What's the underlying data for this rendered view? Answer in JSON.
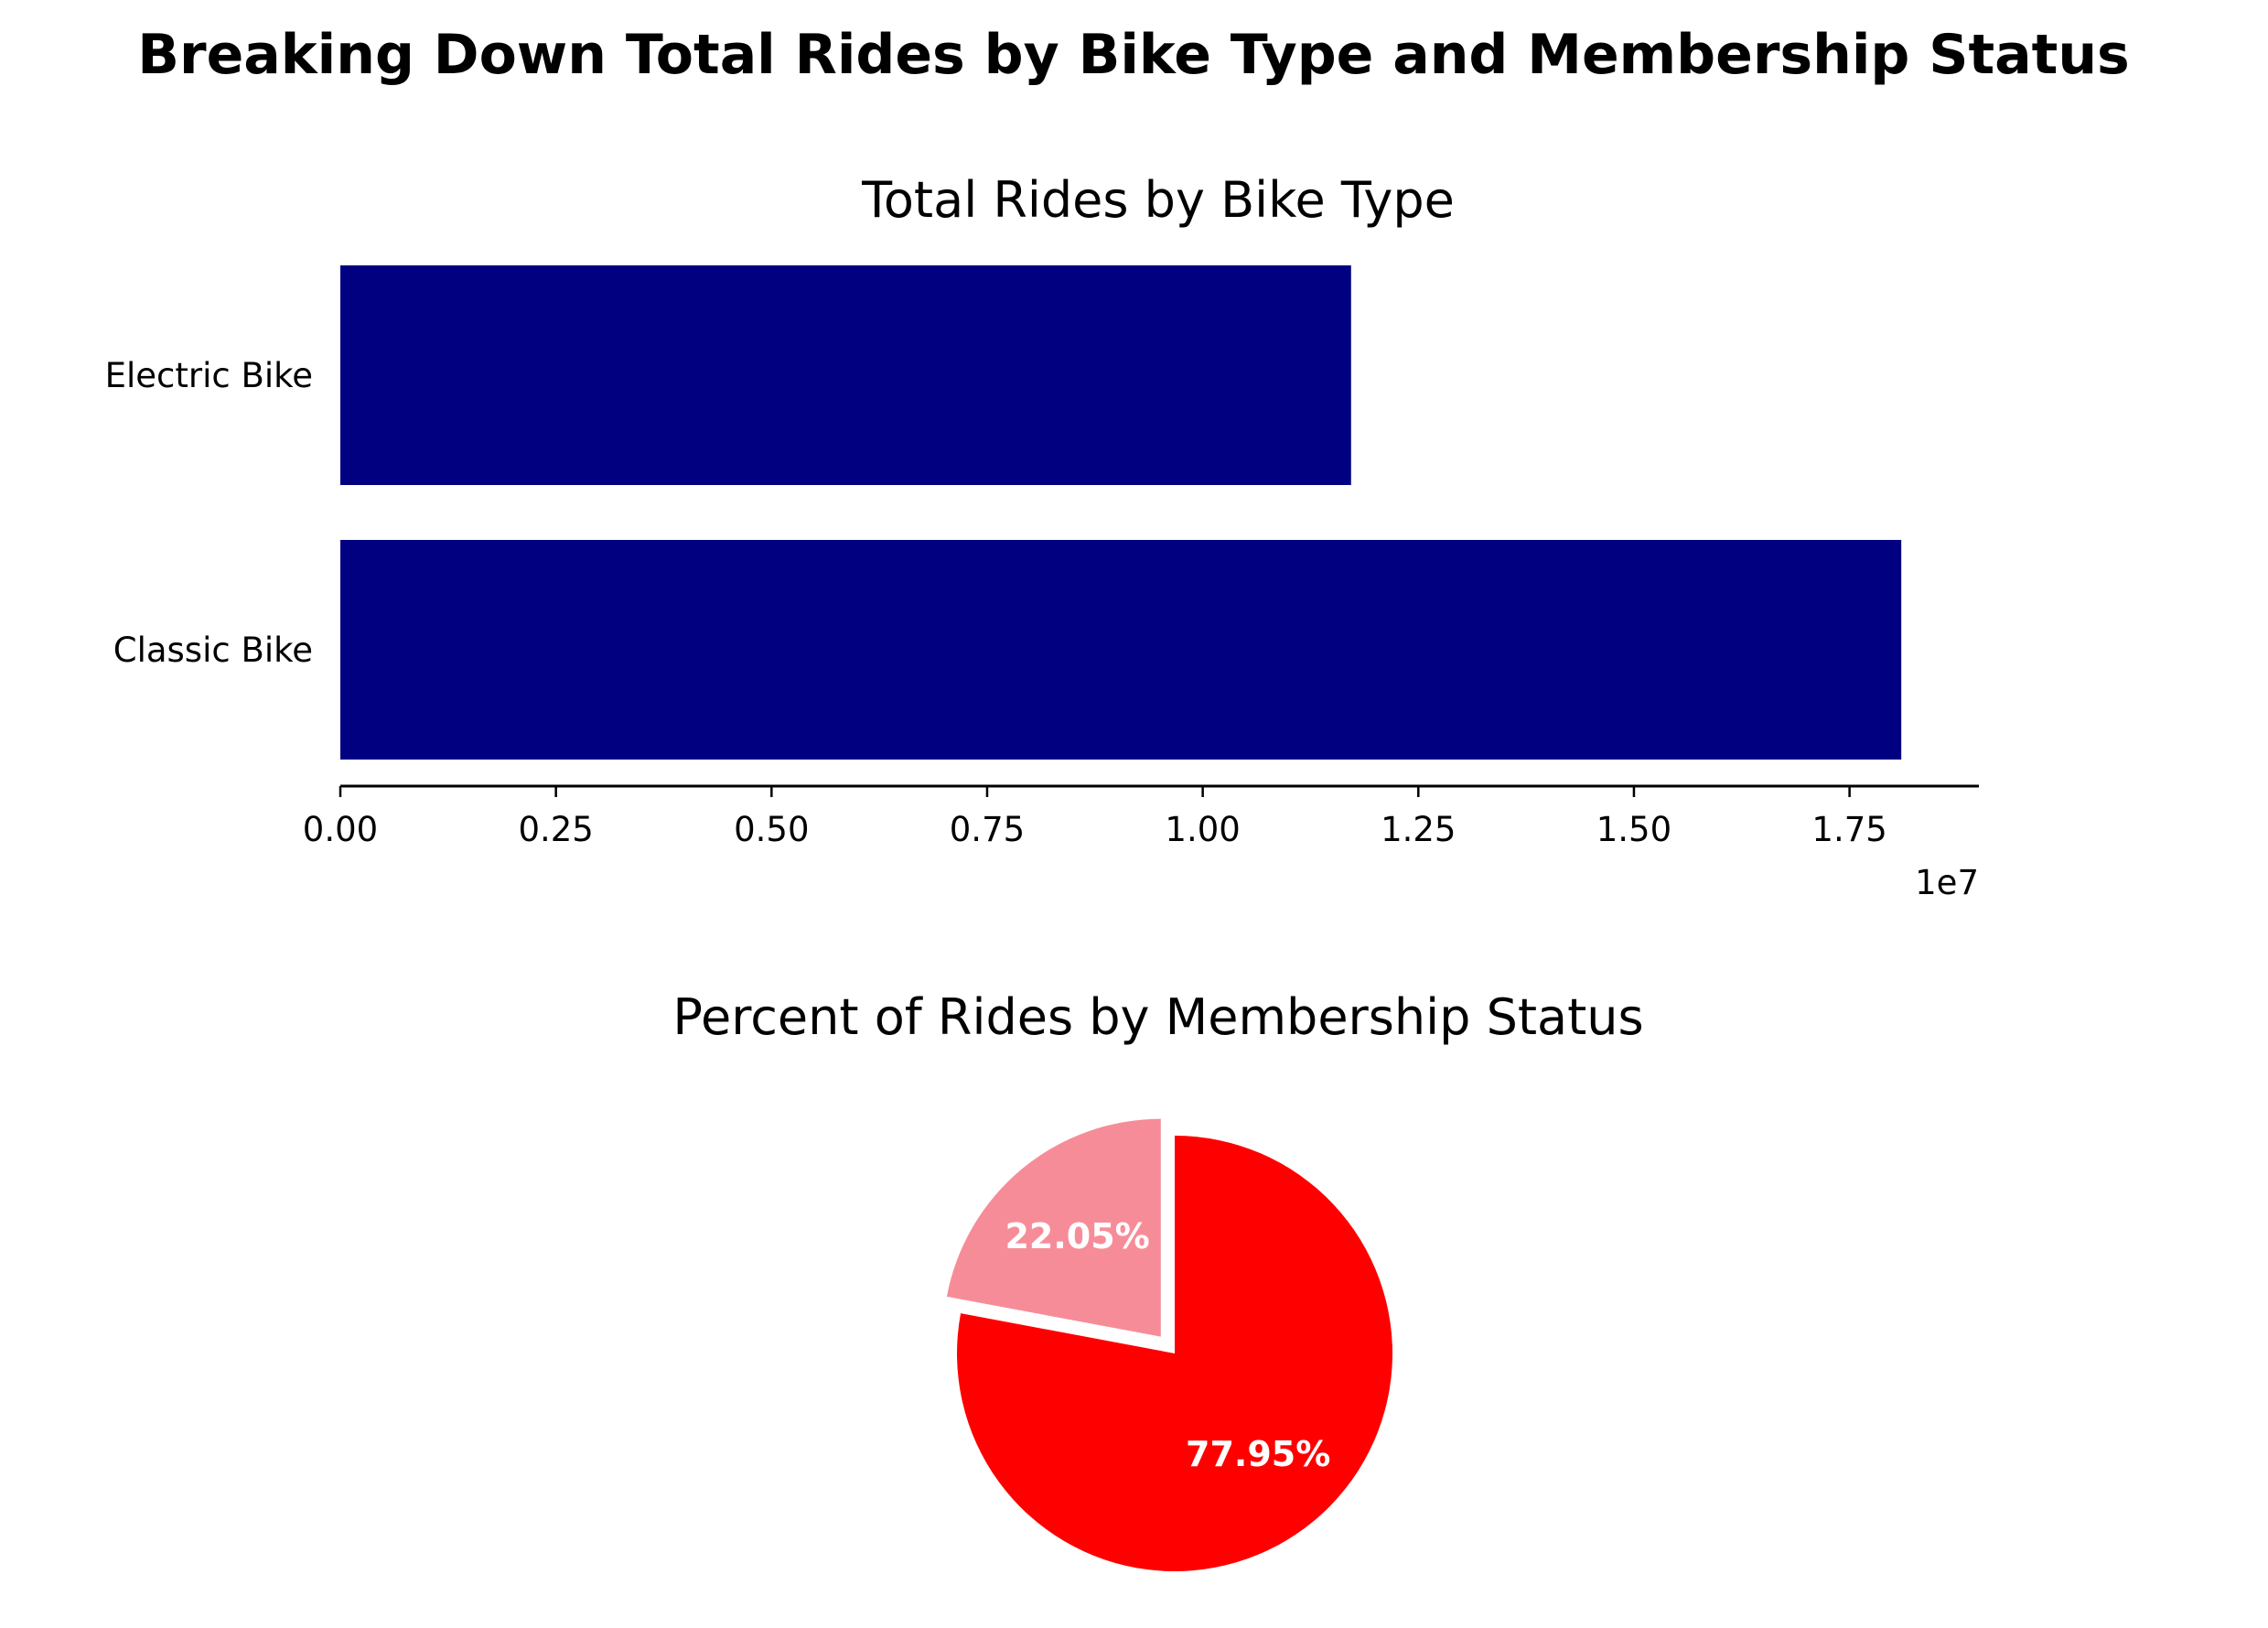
{
  "figure": {
    "title": "Breaking Down Total Rides by Bike Type and Membership Status"
  },
  "chart_data": [
    {
      "type": "bar",
      "orientation": "horizontal",
      "title": "Total Rides by Bike Type",
      "categories": [
        "Electric Bike",
        "Classic Bike"
      ],
      "values": [
        11720000,
        18100000
      ],
      "xlim": [
        0,
        19000000
      ],
      "xticks": [
        0,
        2500000,
        5000000,
        7500000,
        10000000,
        12500000,
        15000000,
        17500000
      ],
      "xtick_labels": [
        "0.00",
        "0.25",
        "0.50",
        "0.75",
        "1.00",
        "1.25",
        "1.50",
        "1.75"
      ],
      "offset_label": "1e7",
      "xlabel": "",
      "ylabel": "",
      "grid": false,
      "color": "#000080"
    },
    {
      "type": "pie",
      "title": "Percent of Rides by Membership Status",
      "slices": [
        {
          "value": 77.95,
          "label": "77.95%",
          "color": "#FF0000",
          "exploded": false
        },
        {
          "value": 22.05,
          "label": "22.05%",
          "color": "#F78C99",
          "exploded": true
        }
      ]
    }
  ]
}
